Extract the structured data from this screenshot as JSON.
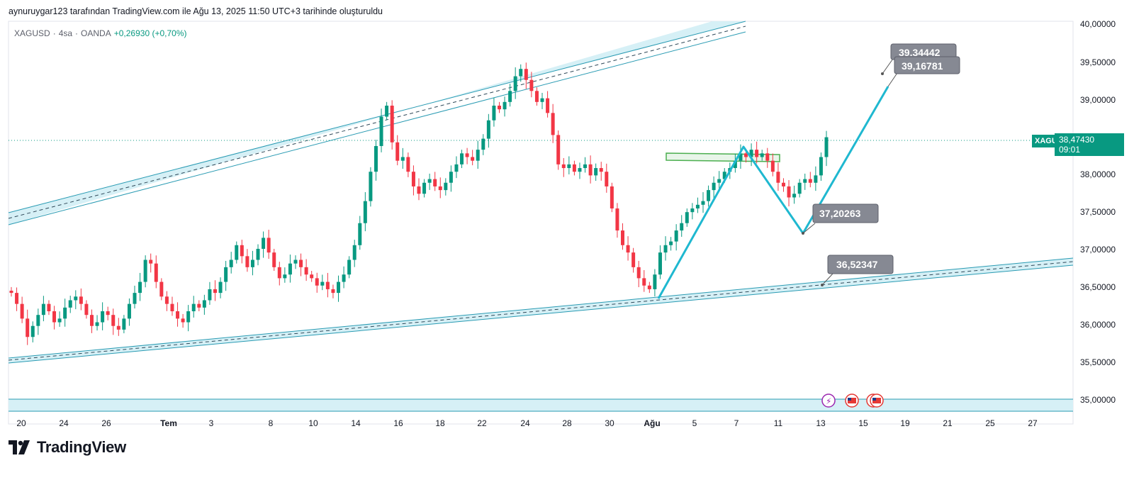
{
  "header": {
    "attribution": "aynuruygar123 tarafından TradingView.com ile Ağu 13, 2025 11:50 UTC+3 tarihinde oluşturuldu"
  },
  "legend": {
    "symbol": "XAGUSD",
    "interval": "4sa",
    "source": "OANDA",
    "change": "+0,26930 (+0,70%)"
  },
  "price_scale": {
    "labels": [
      "40,00000",
      "39,50000",
      "39,00000",
      "38,00000",
      "37,50000",
      "37,00000",
      "36,50000",
      "36,00000",
      "35,50000",
      "35,00000"
    ],
    "current_symbol": "XAGUSD",
    "current_price": "38,47430",
    "countdown": "09:01"
  },
  "time_axis": {
    "labels": [
      "20",
      "24",
      "26",
      "Tem",
      "3",
      "8",
      "10",
      "14",
      "16",
      "18",
      "22",
      "24",
      "28",
      "30",
      "Ağu",
      "5",
      "7",
      "11",
      "13",
      "15",
      "19",
      "21",
      "25",
      "27"
    ]
  },
  "annotations": {
    "target_high": "39.34442",
    "target": "39,16781",
    "pivot_low": "37,20263",
    "support": "36,52347"
  },
  "footer": {
    "brand": "TradingView"
  },
  "colors": {
    "up": "#089981",
    "down": "#f23645",
    "channel": "#2a9bb3",
    "channel_fill": "#d6f0f6",
    "projection": "#1fb8d0",
    "label_bg": "#868993",
    "zone": "#4caf50"
  },
  "chart_data": {
    "type": "candlestick",
    "symbol": "XAGUSD",
    "interval": "4sa",
    "x_axis_labels": [
      "20",
      "24",
      "26",
      "Tem",
      "3",
      "8",
      "10",
      "14",
      "16",
      "18",
      "22",
      "24",
      "28",
      "30",
      "Ağu",
      "5",
      "7",
      "11",
      "13",
      "15",
      "19",
      "21",
      "25",
      "27"
    ],
    "ylim": [
      34.98,
      40.02
    ],
    "grid": false,
    "closes": [
      36.35,
      36.2,
      36.0,
      35.75,
      35.9,
      36.05,
      36.2,
      36.1,
      35.95,
      36.0,
      36.15,
      36.25,
      36.3,
      36.2,
      36.05,
      35.9,
      35.95,
      36.1,
      36.05,
      35.9,
      35.85,
      36.0,
      36.2,
      36.35,
      36.5,
      36.8,
      36.75,
      36.5,
      36.3,
      36.2,
      36.1,
      36.0,
      35.95,
      36.1,
      36.2,
      36.15,
      36.25,
      36.4,
      36.35,
      36.5,
      36.7,
      36.8,
      37.0,
      36.85,
      36.7,
      36.8,
      36.95,
      37.1,
      36.9,
      36.7,
      36.55,
      36.6,
      36.75,
      36.8,
      36.7,
      36.6,
      36.55,
      36.45,
      36.5,
      36.4,
      36.35,
      36.5,
      36.6,
      36.8,
      37.0,
      37.3,
      37.6,
      38.0,
      38.35,
      38.75,
      38.9,
      38.4,
      38.15,
      38.2,
      38.0,
      37.8,
      37.7,
      37.85,
      37.9,
      37.8,
      37.75,
      37.85,
      38.0,
      38.1,
      38.25,
      38.2,
      38.15,
      38.3,
      38.45,
      38.7,
      38.9,
      38.85,
      38.95,
      39.1,
      39.3,
      39.4,
      39.25,
      39.1,
      38.95,
      39.0,
      38.8,
      38.5,
      38.1,
      38.05,
      38.1,
      38.0,
      38.05,
      38.1,
      37.95,
      38.05,
      38.0,
      37.8,
      37.5,
      37.2,
      37.0,
      36.9,
      36.7,
      36.55,
      36.45,
      36.4,
      36.6,
      36.9,
      37.0,
      37.05,
      37.2,
      37.3,
      37.45,
      37.5,
      37.55,
      37.6,
      37.75,
      37.85,
      37.9,
      38.0,
      38.05,
      38.15,
      38.25,
      38.2,
      38.3,
      38.2,
      38.25,
      38.15,
      38.0,
      37.85,
      37.8,
      37.65,
      37.7,
      37.85,
      37.9,
      37.85,
      37.95,
      38.2,
      38.47
    ],
    "annotations": [
      "39.34442",
      "39,16781",
      "37,20263",
      "36,52347"
    ]
  }
}
